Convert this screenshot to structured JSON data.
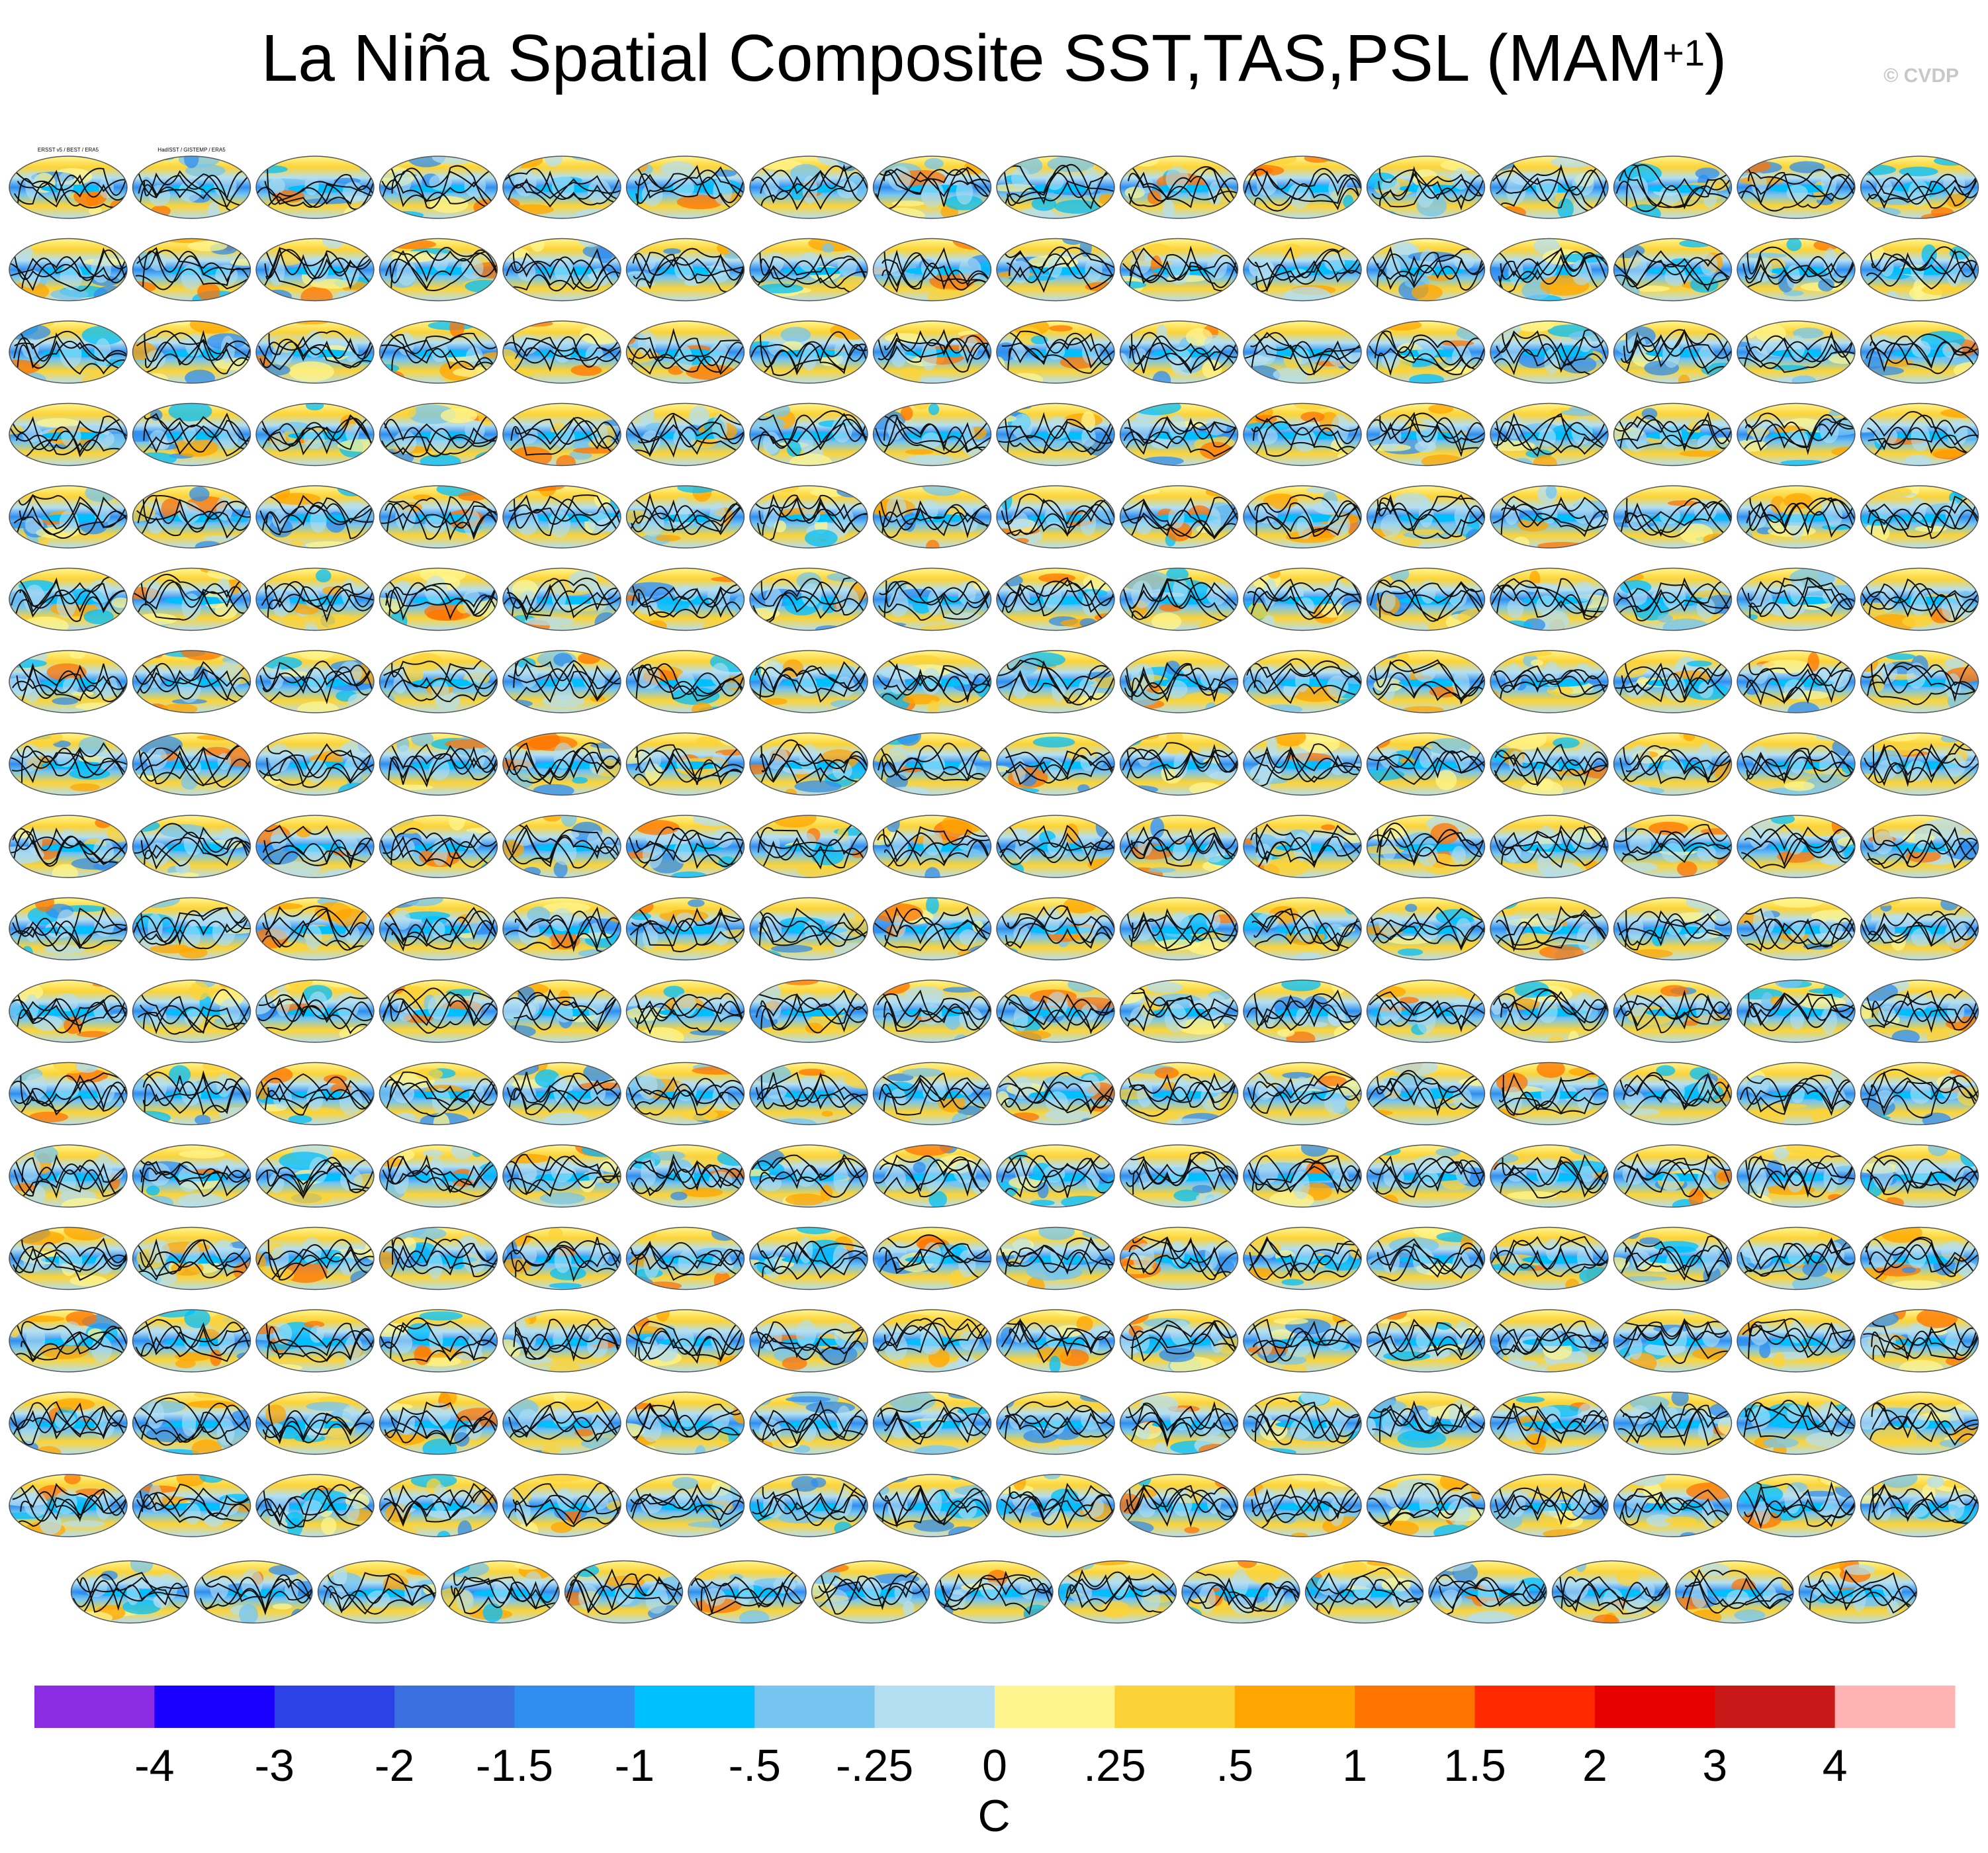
{
  "header": {
    "title": "La Niña Spatial Composite SST,TAS,PSL (MAM",
    "title_superscript": "+1",
    "title_close": ")",
    "credit": "© CVDP"
  },
  "chart_data": {
    "type": "heatmap",
    "description_panels": "Grid of global map panels (ensemble members); 17 full rows of 16 panels plus a final row of 15",
    "grid": {
      "full_rows": 17,
      "columns": 16,
      "last_row_count": 15
    },
    "first_panel_titles": [
      "ERSST v5 / BEST / ERA5",
      "HadISST / GISTEMP / ERA5"
    ],
    "colorbar": {
      "unit_label": "C",
      "tick_labels": [
        "-4",
        "-3",
        "-2",
        "-1.5",
        "-1",
        "-.5",
        "-.25",
        "0",
        ".25",
        ".5",
        "1",
        "1.5",
        "2",
        "3",
        "4"
      ],
      "colors": [
        "#8b2be2",
        "#1a00ff",
        "#2b43e6",
        "#3a6fe0",
        "#2f8ef0",
        "#00bfff",
        "#75c5f0",
        "#b4dff2",
        "#fff58e",
        "#fcd337",
        "#ffa600",
        "#ff7400",
        "#ff2a00",
        "#e60000",
        "#c81818",
        "#ffb2b2"
      ]
    }
  }
}
